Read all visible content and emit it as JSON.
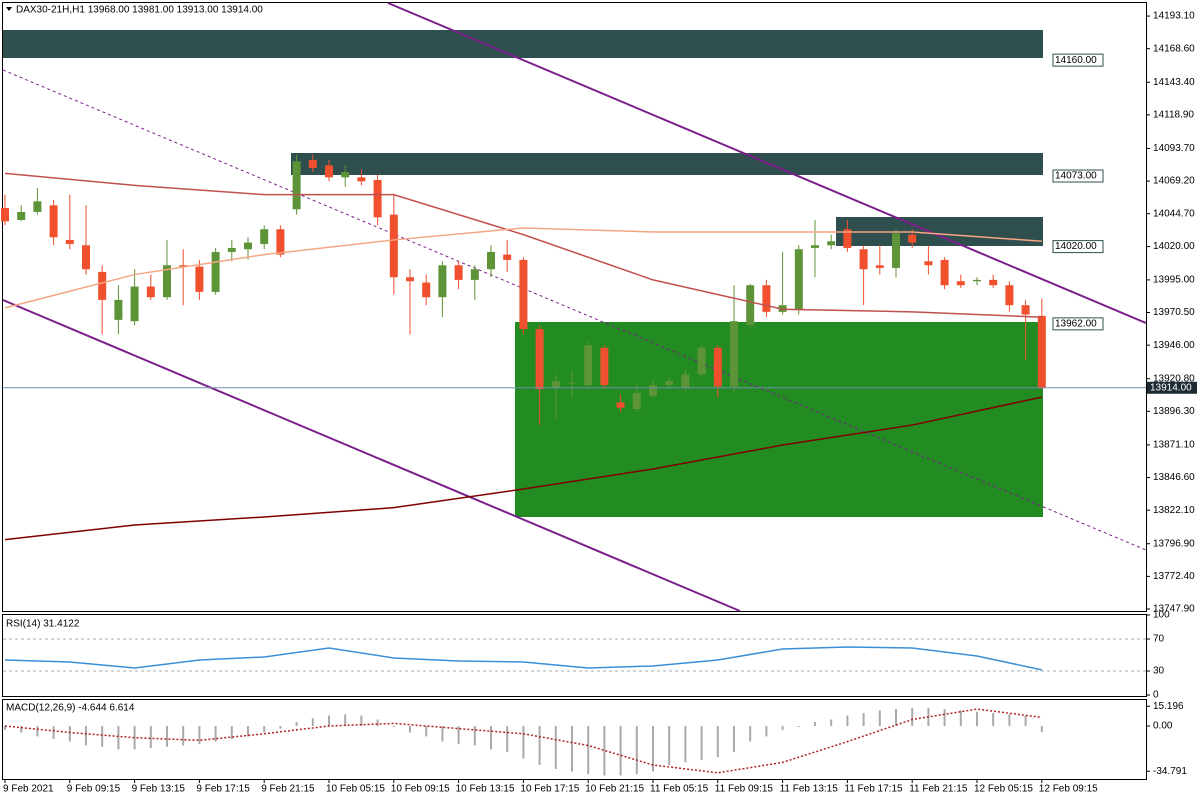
{
  "chart_data": [
    {
      "type": "candlestick",
      "title": "DAX30-21H,H1  13968.00 13981.00 13913.00 13914.00",
      "categories": [
        "9 Feb 2021",
        null,
        null,
        null,
        "9 Feb 09:15",
        null,
        null,
        null,
        "9 Feb 13:15",
        null,
        null,
        null,
        "9 Feb 17:15",
        null,
        null,
        null,
        "9 Feb 21:15",
        null,
        null,
        null,
        "10 Feb 05:15",
        null,
        null,
        null,
        "10 Feb 09:15",
        null,
        null,
        null,
        "10 Feb 13:15",
        null,
        null,
        null,
        "10 Feb 17:15",
        null,
        null,
        null,
        "10 Feb 21:15",
        null,
        null,
        null,
        "11 Feb 05:15",
        null,
        null,
        null,
        "11 Feb 09:15",
        null,
        null,
        null,
        "11 Feb 13:15",
        null,
        null,
        null,
        "11 Feb 17:15",
        null,
        null,
        null,
        "11 Feb 21:15",
        null,
        null,
        null,
        "12 Feb 05:15",
        null,
        null,
        null,
        "12 Feb 09:15"
      ],
      "open": [
        14049,
        14040,
        14046,
        14051,
        14025,
        14021,
        14001,
        13965,
        13964,
        13990,
        13982,
        14006,
        14005,
        13986,
        14016,
        14018,
        14022,
        14033,
        14048,
        14085,
        14081,
        14072,
        14072,
        14070,
        14044,
        13997,
        13993,
        13982,
        14006,
        13995,
        14003,
        14014,
        14010,
        13958,
        13914,
        13918,
        13916,
        13944,
        13903,
        13898,
        13908,
        13916,
        13914,
        13924,
        13944,
        13915,
        13961,
        13991,
        13971,
        13973,
        14019,
        14021,
        14033,
        14018,
        14006,
        14004,
        14029,
        14009,
        14010,
        13994,
        13994,
        13995,
        13991,
        13976,
        13968
      ],
      "high": [
        14059,
        14051,
        14064,
        14055,
        14059,
        14051,
        14006,
        13991,
        14003,
        13999,
        14025,
        14018,
        14010,
        14019,
        14025,
        14027,
        14036,
        14036,
        14089,
        14089,
        14085,
        14081,
        14078,
        14074,
        14059,
        14003,
        13999,
        14009,
        14009,
        14006,
        14021,
        14025,
        14012,
        13961,
        13924,
        13926,
        13949,
        13946,
        13909,
        13916,
        13920,
        13922,
        13928,
        13946,
        13946,
        13991,
        13992,
        13995,
        14016,
        14021,
        14040,
        14029,
        14040,
        14021,
        14021,
        14033,
        14033,
        14021,
        14012,
        13999,
        13997,
        13999,
        13994,
        13980,
        13981
      ],
      "low": [
        14036,
        14039,
        14044,
        14021,
        14018,
        13999,
        13954,
        13954,
        13961,
        13980,
        13980,
        13976,
        13980,
        13984,
        14009,
        14010,
        14018,
        14012,
        14044,
        14076,
        14069,
        14065,
        14066,
        14036,
        13984,
        13954,
        13976,
        13967,
        13988,
        13980,
        13997,
        14001,
        13954,
        13886,
        13890,
        13907,
        13913,
        13913,
        13896,
        13896,
        13907,
        13914,
        13911,
        13922,
        13907,
        13911,
        13958,
        13967,
        13969,
        13969,
        13997,
        14018,
        14016,
        13976,
        13999,
        13997,
        14019,
        13999,
        13988,
        13989,
        13991,
        13989,
        13971,
        13935,
        13913
      ],
      "close": [
        14039,
        14046,
        14054,
        14027,
        14022,
        14003,
        13980,
        13980,
        13990,
        13982,
        14006,
        14005,
        13986,
        14016,
        14019,
        14023,
        14033,
        14014,
        14084,
        14079,
        14072,
        14076,
        14069,
        14042,
        13997,
        13994,
        13982,
        14006,
        13995,
        14003,
        14016,
        14010,
        13958,
        13913,
        13919,
        13918,
        13946,
        13916,
        13899,
        13910,
        13916,
        13919,
        13924,
        13944,
        13915,
        13964,
        13991,
        13971,
        13976,
        14018,
        14021,
        14024,
        14019,
        14003,
        14004,
        14030,
        14023,
        14006,
        13991,
        13991,
        13995,
        13991,
        13976,
        13969,
        13914
      ],
      "up_color": "#5e9438",
      "down_color": "#f0502d",
      "ylim": [
        13746.4,
        14202.9
      ],
      "yticks": [
        {
          "value": 14193.1,
          "label": "14193.10"
        },
        {
          "value": 14168.6,
          "label": "14168.60"
        },
        {
          "value": 14143.4,
          "label": "14143.40"
        },
        {
          "value": 14118.9,
          "label": "14118.90"
        },
        {
          "value": 14093.7,
          "label": "14093.70"
        },
        {
          "value": 14069.2,
          "label": "14069.20"
        },
        {
          "value": 14044.7,
          "label": "14044.70"
        },
        {
          "value": 14020,
          "label": "14020.00"
        },
        {
          "value": 13995,
          "label": "13995.00"
        },
        {
          "value": 13970.5,
          "label": "13970.50"
        },
        {
          "value": 13946,
          "label": "13946.00"
        },
        {
          "value": 13920.8,
          "label": "13920.80"
        },
        {
          "value": 13896.3,
          "label": "13896.30"
        },
        {
          "value": 13871.1,
          "label": "13871.10"
        },
        {
          "value": 13846.6,
          "label": "13846.60"
        },
        {
          "value": 13822.1,
          "label": "13822.10"
        },
        {
          "value": 13796.9,
          "label": "13796.90"
        },
        {
          "value": 13772.4,
          "label": "13772.40"
        },
        {
          "value": 13747.9,
          "label": "13747.90"
        }
      ],
      "lines": [
        {
          "color": "#c0504d",
          "x": [
            0,
            8,
            16,
            24,
            32,
            40,
            48,
            56,
            64
          ],
          "values": [
            14075,
            14066,
            14059,
            14059,
            14029,
            13995,
            13973,
            13971,
            13967
          ]
        },
        {
          "color": "#f4a582",
          "x": [
            0,
            8,
            16,
            24,
            32,
            40,
            48,
            56,
            64
          ],
          "values": [
            13974,
            13999,
            14014,
            14025,
            14034,
            14031,
            14031,
            14031,
            14024
          ]
        },
        {
          "color": "#800000",
          "x": [
            0,
            8,
            16,
            24,
            32,
            40,
            48,
            56,
            64
          ],
          "values": [
            13800,
            13811,
            13817,
            13824,
            13838,
            13853,
            13871,
            13886,
            13907
          ]
        }
      ],
      "levels": [
        {
          "value": 14160,
          "label": "14160.00"
        },
        {
          "value": 14073,
          "label": "14073.00"
        },
        {
          "value": 14020,
          "label": "14020.00"
        },
        {
          "value": 13962,
          "label": "13962.00"
        }
      ],
      "current": {
        "value": 13914,
        "label": "13914.00"
      }
    },
    {
      "type": "line",
      "title": "RSI(14) 31.4122",
      "color": "#3a8fd6",
      "x": [
        0,
        4,
        8,
        12,
        16,
        20,
        24,
        28,
        32,
        36,
        40,
        44,
        48,
        52,
        56,
        60,
        64
      ],
      "values": [
        43.8,
        41.3,
        33.8,
        43.8,
        47.5,
        58.8,
        46.3,
        42.5,
        41.3,
        33.8,
        36.3,
        43.8,
        57.5,
        60,
        58.8,
        48.8,
        31.4
      ],
      "ylim": [
        0,
        100
      ],
      "yticks": [
        100,
        70,
        30,
        0
      ],
      "dashed_levels": [
        70,
        30
      ]
    },
    {
      "type": "macd",
      "title": "MACD(12,26,9) -4.644 6.614",
      "color": "#a9a9a9",
      "values": [
        -3,
        -5,
        -8,
        -10,
        -12,
        -15,
        -16,
        -18,
        -18,
        -17,
        -16,
        -15,
        -14,
        -12,
        -10,
        -8,
        -5,
        -2,
        3,
        6,
        8,
        9,
        8,
        5,
        0,
        -5,
        -8,
        -12,
        -14,
        -15,
        -18,
        -20,
        -25,
        -30,
        -33,
        -35,
        -37,
        -38,
        -38,
        -37,
        -35,
        -30,
        -28,
        -26,
        -24,
        -20,
        -12,
        -8,
        -3,
        0,
        3,
        5,
        8,
        10,
        12,
        13,
        14,
        14,
        13,
        12,
        11,
        10,
        9,
        8,
        -4.644
      ],
      "signal": {
        "color": "#b22222",
        "x": [
          0,
          4,
          8,
          12,
          16,
          20,
          24,
          28,
          32,
          36,
          40,
          44,
          48,
          52,
          56,
          60,
          64
        ],
        "values": [
          0,
          -5,
          -9,
          -11,
          -6,
          0,
          2,
          -2,
          -6,
          -15,
          -30,
          -36,
          -28,
          -12,
          5,
          13,
          6.614
        ]
      },
      "ylim": [
        -40,
        20
      ],
      "yticks": [
        15.196,
        {
          "value": 0,
          "label": "0.00"
        },
        -34.791
      ]
    }
  ]
}
